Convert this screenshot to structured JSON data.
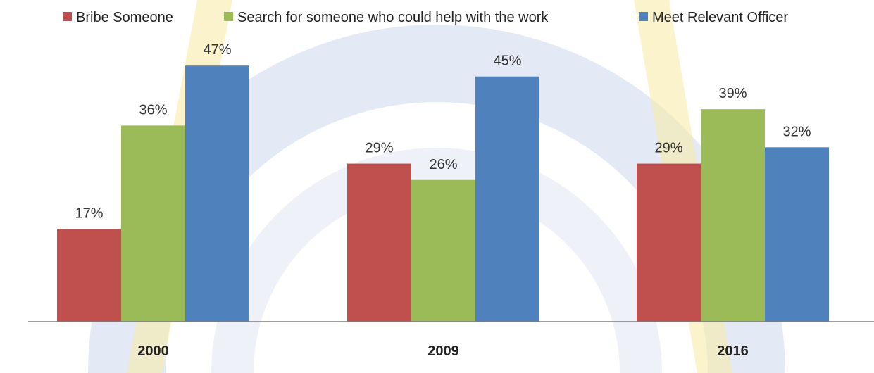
{
  "chart_data": {
    "type": "bar",
    "categories": [
      "2000",
      "2009",
      "2016"
    ],
    "series": [
      {
        "name": "Bribe Someone",
        "color": "#C0504D",
        "values": [
          17,
          29,
          29
        ],
        "labels": [
          "17%",
          "29%",
          "29%"
        ]
      },
      {
        "name": "Search for someone who could help with the work",
        "color": "#9BBB59",
        "values": [
          36,
          26,
          39
        ],
        "labels": [
          "36%",
          "26%",
          "39%"
        ]
      },
      {
        "name": "Meet Relevant Officer",
        "color": "#4F81BD",
        "values": [
          47,
          45,
          32
        ],
        "labels": [
          "47%",
          "45%",
          "32%"
        ]
      }
    ],
    "ylim": [
      0,
      50
    ],
    "legend_position": "top",
    "grid": false,
    "watermark": {
      "colors": [
        "#9FB4DA",
        "#F7E9A0"
      ]
    }
  }
}
